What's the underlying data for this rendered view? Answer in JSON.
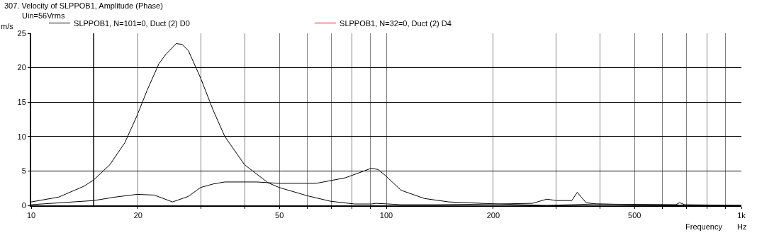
{
  "chart_data": {
    "type": "line",
    "title": "307. Velocity of SLPPOB1, Amplitude (Phase)",
    "ylabel": "m/s",
    "xlabel": "Frequency",
    "annotations": [
      "Uin=56Vrms",
      "Hz"
    ],
    "log": "x",
    "grid": true,
    "legend": "top",
    "line_style": "solid",
    "marker": "none",
    "xlim": [
      10,
      1000
    ],
    "xticks": [
      10,
      20,
      {
        "value": 30,
        "label": null
      },
      {
        "value": 40,
        "label": null
      },
      50,
      {
        "value": 60,
        "label": null
      },
      {
        "value": 70,
        "label": null
      },
      {
        "value": 80,
        "label": null
      },
      {
        "value": 90,
        "label": null
      },
      100,
      200,
      {
        "value": 300,
        "label": null
      },
      {
        "value": 400,
        "label": null
      },
      500,
      {
        "value": 600,
        "label": null
      },
      {
        "value": 700,
        "label": null
      },
      {
        "value": 800,
        "label": null
      },
      {
        "value": 900,
        "label": null
      },
      {
        "value": 1000,
        "label": "1k"
      }
    ],
    "ylim": [
      0,
      25
    ],
    "yticks": [
      0,
      5,
      10,
      15,
      20,
      25
    ],
    "ref_lines": [
      {
        "axis": "x",
        "value": 15,
        "color": "#000000"
      }
    ],
    "series": [
      {
        "name": "SLPPOB1, N=32=0, Duct (2) D4",
        "color": "#ff0000"
      },
      {
        "name": "SLPPOB1, N=101=0, Duct (2) D0",
        "color": "#000000",
        "x": [
          10,
          11.95,
          14.1,
          15,
          16.65,
          18.35,
          19.85,
          21.2,
          22.9,
          24,
          25.6,
          26.6,
          27.7,
          30,
          32.5,
          35.1,
          39.9,
          46.4,
          49.9,
          59.9,
          69.6,
          81.5,
          90.9,
          93.5,
          110,
          139,
          206,
          283,
          390,
          580,
          735,
          935,
          1000
        ],
        "values": [
          0.5,
          1.2,
          2.8,
          3.7,
          5.9,
          9.1,
          13.0,
          16.7,
          20.6,
          22.0,
          23.5,
          23.4,
          22.5,
          18.5,
          13.9,
          10.0,
          5.9,
          3.3,
          2.6,
          1.4,
          0.6,
          0.2,
          0.2,
          0.3,
          0.1,
          0.1,
          0.2,
          0,
          0.2,
          0.1,
          0,
          0,
          0
        ]
      },
      {
        "color": "#000000",
        "x": [
          10,
          15,
          17.2,
          19.85,
          22.2,
          25,
          27.7,
          30,
          32.5,
          35.1,
          43.2,
          49.9,
          63.4,
          76.6,
          90.9,
          94.9,
          99.6,
          110,
          128,
          150,
          206,
          258,
          283,
          302,
          333,
          345,
          365,
          390,
          495,
          655,
          670,
          692,
          1000
        ],
        "values": [
          0.1,
          0.7,
          1.2,
          1.6,
          1.5,
          0.5,
          1.3,
          2.6,
          3.1,
          3.4,
          3.4,
          3.2,
          3.2,
          4.0,
          5.4,
          5.2,
          4.3,
          2.2,
          1.0,
          0.5,
          0.2,
          0.3,
          0.9,
          0.7,
          0.7,
          1.9,
          0.4,
          0.2,
          0.1,
          0.1,
          0.4,
          0.1,
          0
        ]
      }
    ]
  }
}
